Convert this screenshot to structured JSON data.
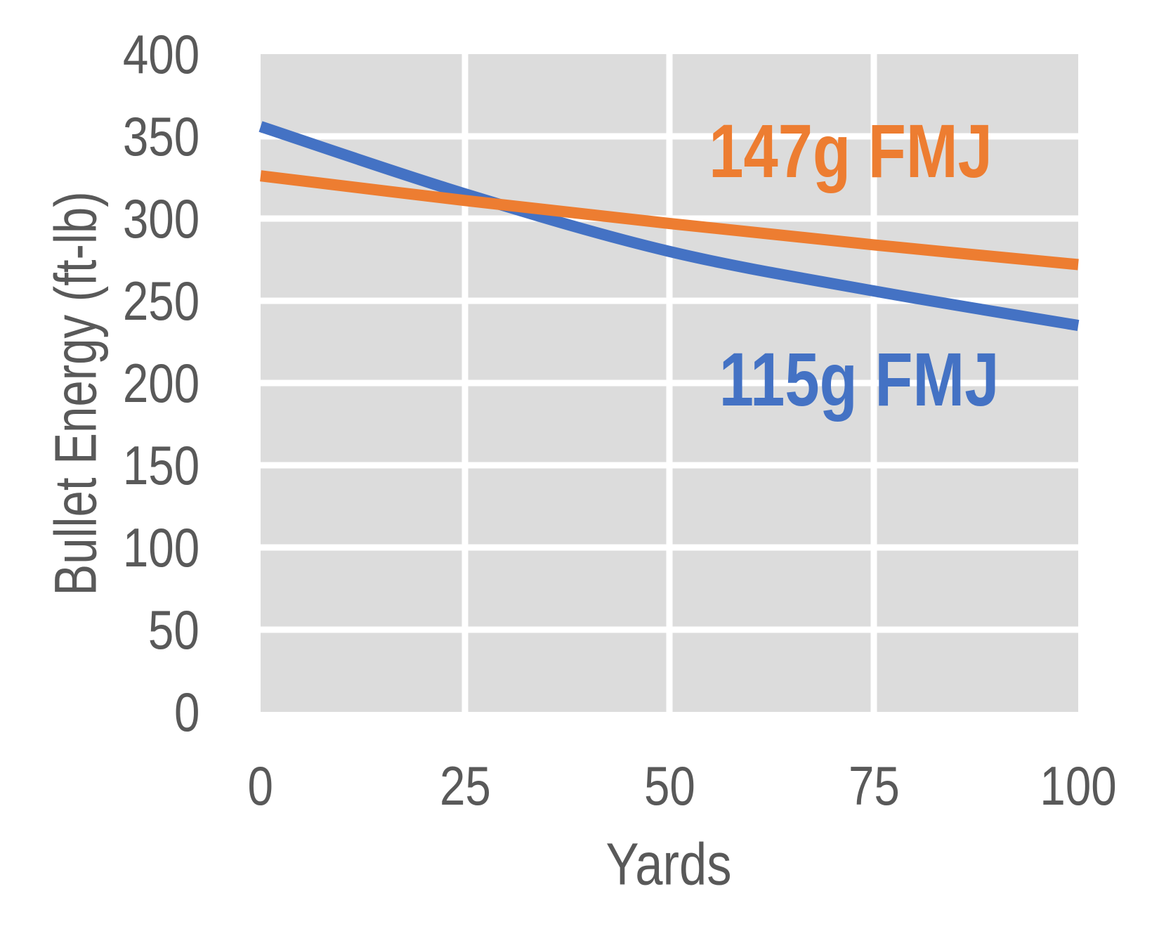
{
  "chart_data": {
    "type": "line",
    "title": "",
    "xlabel": "Yards",
    "ylabel": "Bullet Energy (ft-lb)",
    "xlim": [
      0,
      100
    ],
    "ylim": [
      0,
      400
    ],
    "grid": true,
    "legend_position": "inline-labels-on-plot",
    "plot_bg": "#DCDCDC",
    "gridline_color": "#FFFFFF",
    "text_color": "#595959",
    "x": [
      0,
      25,
      50,
      75,
      100
    ],
    "x_ticks": [
      "0",
      "25",
      "50",
      "75",
      "100"
    ],
    "y_ticks": [
      "0",
      "50",
      "100",
      "150",
      "200",
      "250",
      "300",
      "350",
      "400"
    ],
    "y_tick_values": [
      0,
      50,
      100,
      150,
      200,
      250,
      300,
      350,
      400
    ],
    "series": [
      {
        "name": "115g FMJ",
        "color": "#4472C4",
        "values": [
          356,
          315,
          280,
          256,
          235
        ]
      },
      {
        "name": "147g FMJ",
        "color": "#ED7D31",
        "values": [
          326,
          311,
          297,
          284,
          272
        ]
      }
    ]
  }
}
